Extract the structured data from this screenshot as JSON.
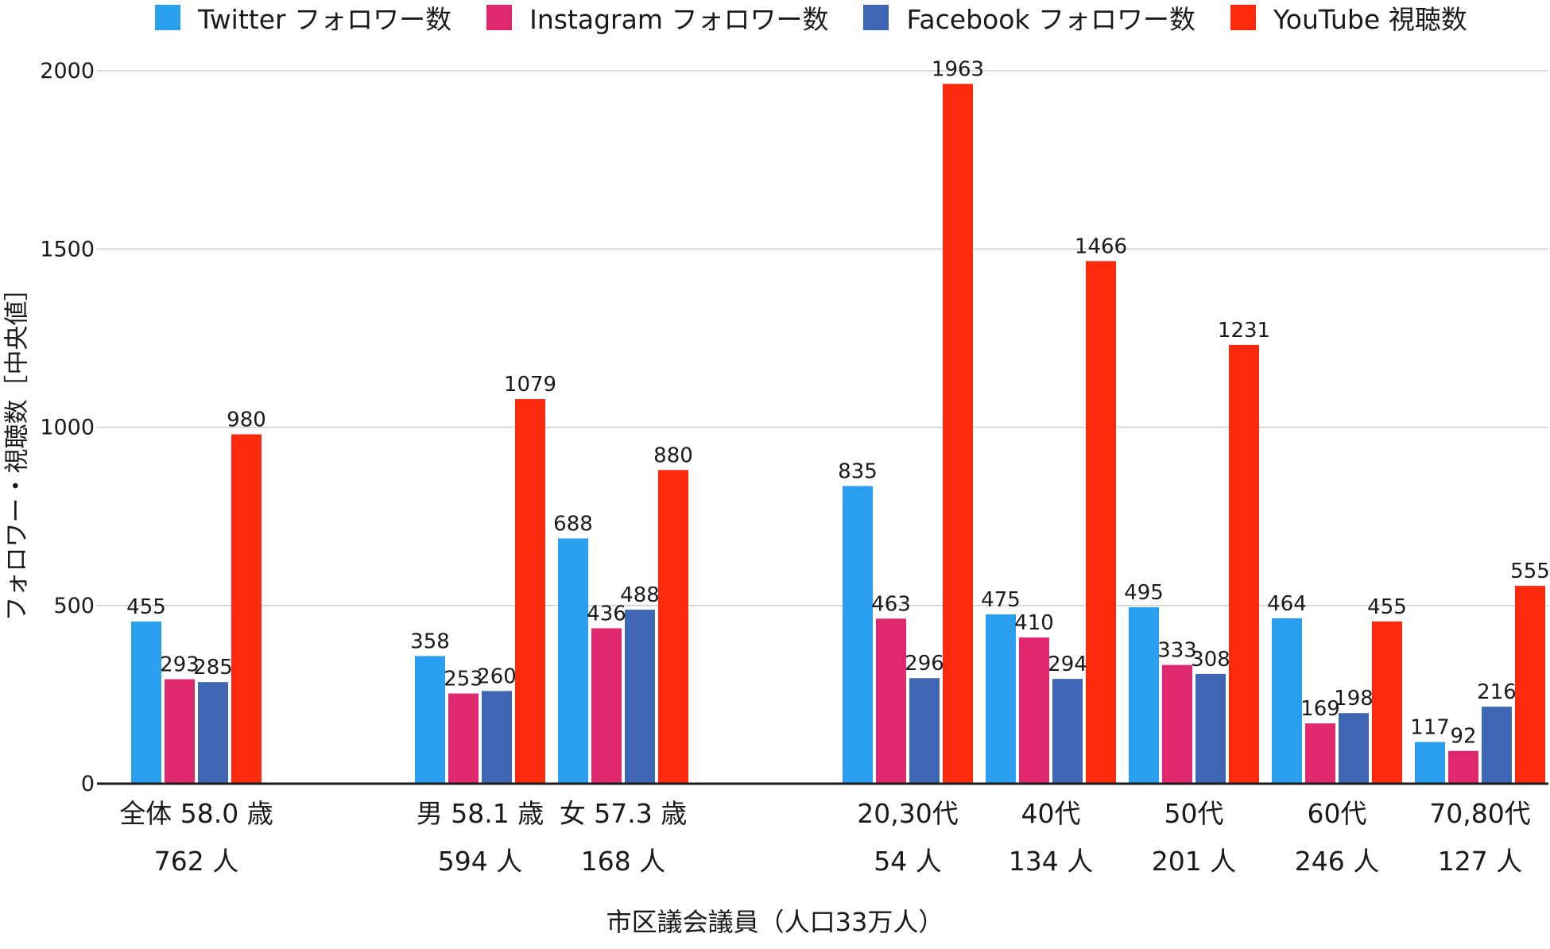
{
  "chart_data": {
    "type": "bar",
    "title": "",
    "xlabel": "市区議会議員（人口33万人）",
    "ylabel": "フォロワー・視聴数［中央値］",
    "ylim": [
      0,
      2000
    ],
    "yticks": [
      0,
      500,
      1000,
      1500,
      2000
    ],
    "grid": true,
    "legend_position": "top",
    "categories": [
      {
        "line1": "全体 58.0 歳",
        "line2": "762 人"
      },
      {
        "line1": "男 58.1 歳",
        "line2": "594 人"
      },
      {
        "line1": "女 57.3 歳",
        "line2": "168 人"
      },
      {
        "line1": "20,30代",
        "line2": "54 人"
      },
      {
        "line1": "40代",
        "line2": "134 人"
      },
      {
        "line1": "50代",
        "line2": "201 人"
      },
      {
        "line1": "60代",
        "line2": "246 人"
      },
      {
        "line1": "70,80代",
        "line2": "127 人"
      }
    ],
    "series": [
      {
        "name": "Twitter フォロワー数",
        "color": "#2a9ff0",
        "values": [
          455,
          358,
          688,
          835,
          475,
          495,
          464,
          117
        ]
      },
      {
        "name": "Instagram フォロワー数",
        "color": "#e0286f",
        "values": [
          293,
          253,
          436,
          463,
          410,
          333,
          169,
          92
        ]
      },
      {
        "name": "Facebook フォロワー数",
        "color": "#3e66b3",
        "values": [
          285,
          260,
          488,
          296,
          294,
          308,
          198,
          216
        ]
      },
      {
        "name": "YouTube 視聴数",
        "color": "#fc2a0c",
        "values": [
          980,
          1079,
          880,
          1963,
          1466,
          1231,
          455,
          555
        ]
      }
    ]
  }
}
